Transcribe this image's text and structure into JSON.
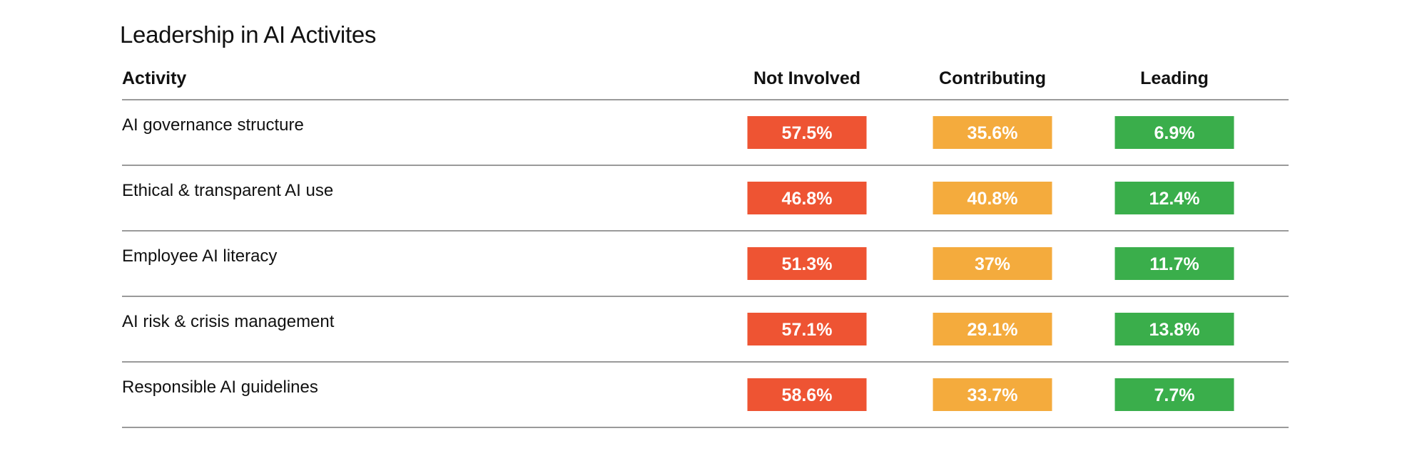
{
  "chart_data": {
    "type": "table",
    "title": "Leadership in AI Activites",
    "row_header": "Activity",
    "columns": [
      "Not Involved",
      "Contributing",
      "Leading"
    ],
    "column_colors": [
      "#ee5433",
      "#f4ab3d",
      "#3aae4b"
    ],
    "rows": [
      {
        "label": "AI governance structure",
        "values": [
          57.5,
          35.6,
          6.9
        ],
        "labels": [
          "57.5%",
          "35.6%",
          "6.9%"
        ]
      },
      {
        "label": "Ethical & transparent AI use",
        "values": [
          46.8,
          40.8,
          12.4
        ],
        "labels": [
          "46.8%",
          "40.8%",
          "12.4%"
        ]
      },
      {
        "label": "Employee AI literacy",
        "values": [
          51.3,
          37,
          11.7
        ],
        "labels": [
          "51.3%",
          "37%",
          "11.7%"
        ]
      },
      {
        "label": "AI risk & crisis management",
        "values": [
          57.1,
          29.1,
          13.8
        ],
        "labels": [
          "57.1%",
          "29.1%",
          "13.8%"
        ]
      },
      {
        "label": "Responsible AI guidelines",
        "values": [
          58.6,
          33.7,
          7.7
        ],
        "labels": [
          "58.6%",
          "33.7%",
          "7.7%"
        ]
      }
    ]
  },
  "colors": {
    "text": "#111111",
    "rule": "#9a9a9a",
    "cell_text": "#ffffff"
  }
}
